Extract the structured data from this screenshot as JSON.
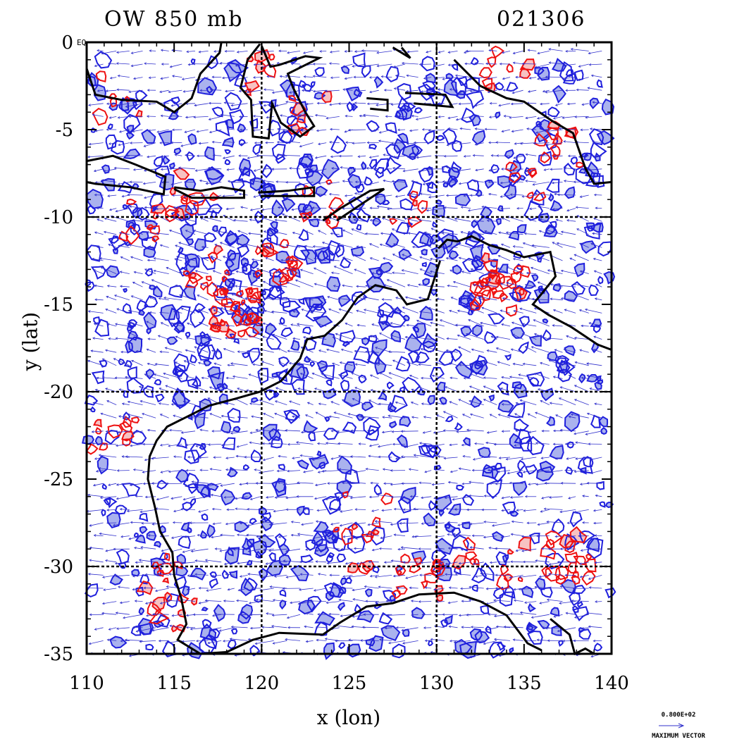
{
  "chart_data": {
    "type": "map-contour-vector",
    "title_left": "OW 850 mb",
    "title_right": "021306",
    "xlabel": "x (lon)",
    "ylabel": "y (lat)",
    "xlim": [
      110,
      140
    ],
    "ylim": [
      -35,
      0
    ],
    "x_ticks": [
      "110",
      "115",
      "120",
      "125",
      "130",
      "135",
      "140"
    ],
    "y_ticks": [
      "0",
      "-5",
      "-10",
      "-15",
      "-20",
      "-25",
      "-30",
      "-35"
    ],
    "grid_lon": [
      120,
      130
    ],
    "grid_lat": [
      -10,
      -20,
      -30
    ],
    "corner_label": "EQ",
    "max_vector_value": "0.800E+02",
    "max_vector_label": "MAXIMUM VECTOR",
    "colors": {
      "negative_contour": "#1f1fdd",
      "negative_fill": "#aab2ee",
      "positive_contour": "#ee1111",
      "positive_fill": "#f7c2c2",
      "coastline": "#000000",
      "vector": "#3030cc"
    }
  }
}
